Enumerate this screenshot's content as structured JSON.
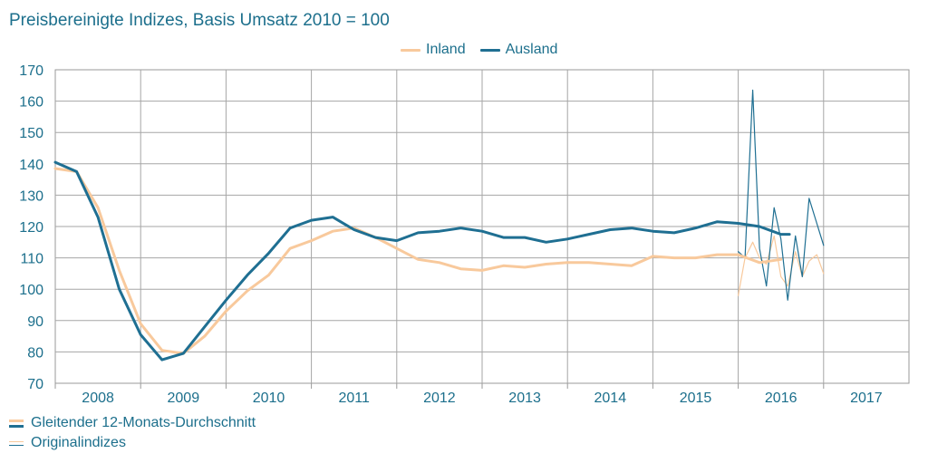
{
  "title": "Preisbereinigte Indizes, Basis Umsatz 2010 = 100",
  "legend_top": [
    {
      "label": "Inland",
      "color": "#f8c99c"
    },
    {
      "label": "Ausland",
      "color": "#1f6f92"
    }
  ],
  "legend_bottom": [
    {
      "label": "Gleitender 12-Monats-Durchschnitt"
    },
    {
      "label": "Originalindizes"
    }
  ],
  "chart_data": {
    "type": "line",
    "title": "Preisbereinigte Indizes, Basis Umsatz 2010 = 100",
    "xlabel": "",
    "ylabel": "",
    "ylim": [
      70,
      170
    ],
    "yticks": [
      70,
      80,
      90,
      100,
      110,
      120,
      130,
      140,
      150,
      160,
      170
    ],
    "xlim": [
      2007.5,
      2017.5
    ],
    "xticks": [
      "2008",
      "2009",
      "2010",
      "2011",
      "2012",
      "2013",
      "2014",
      "2015",
      "2016",
      "2017"
    ],
    "grid": true,
    "colors": {
      "inland": "#f8c99c",
      "ausland": "#1f6f92"
    },
    "series": [
      {
        "name": "Inland",
        "style": "Gleitender 12-Monats-Durchschnitt",
        "x": [
          2007.5,
          2007.75,
          2008.0,
          2008.25,
          2008.5,
          2008.75,
          2009.0,
          2009.25,
          2009.5,
          2009.75,
          2010.0,
          2010.25,
          2010.5,
          2010.75,
          2011.0,
          2011.25,
          2011.5,
          2011.75,
          2012.0,
          2012.25,
          2012.5,
          2012.75,
          2013.0,
          2013.25,
          2013.5,
          2013.75,
          2014.0,
          2014.25,
          2014.5,
          2014.75,
          2015.0,
          2015.25,
          2015.5,
          2015.75,
          2016.0
        ],
        "values": [
          138.5,
          137.5,
          126,
          106,
          89,
          80.5,
          79.5,
          85,
          93,
          99.5,
          104.5,
          113,
          115.5,
          118.5,
          119.5,
          116.5,
          113,
          109.5,
          108.5,
          106.5,
          106,
          107.5,
          107,
          108,
          108.5,
          108.5,
          108,
          107.5,
          110.5,
          110,
          110,
          111,
          111,
          108.5,
          109.5
        ]
      },
      {
        "name": "Ausland",
        "style": "Gleitender 12-Monats-Durchschnitt",
        "x": [
          2007.5,
          2007.75,
          2008.0,
          2008.25,
          2008.5,
          2008.75,
          2009.0,
          2009.25,
          2009.5,
          2009.75,
          2010.0,
          2010.25,
          2010.5,
          2010.75,
          2011.0,
          2011.25,
          2011.5,
          2011.75,
          2012.0,
          2012.25,
          2012.5,
          2012.75,
          2013.0,
          2013.25,
          2013.5,
          2013.75,
          2014.0,
          2014.25,
          2014.5,
          2014.75,
          2015.0,
          2015.25,
          2015.5,
          2015.75,
          2016.0,
          2016.1
        ],
        "values": [
          140.5,
          137.5,
          123,
          100,
          85.5,
          77.5,
          79.5,
          88,
          96.5,
          104.5,
          111.5,
          119.5,
          122,
          123,
          119,
          116.5,
          115.5,
          118,
          118.5,
          119.5,
          118.5,
          116.5,
          116.5,
          115,
          116,
          117.5,
          119,
          119.5,
          118.5,
          118,
          119.5,
          121.5,
          121,
          120,
          117.5,
          117.5
        ]
      },
      {
        "name": "Inland",
        "style": "Originalindizes",
        "x": [
          2015.5,
          2015.58,
          2015.67,
          2015.75,
          2015.83,
          2015.92,
          2016.0,
          2016.08,
          2016.17,
          2016.25,
          2016.33,
          2016.42,
          2016.5
        ],
        "values": [
          98,
          110,
          115,
          110,
          108,
          117,
          104,
          101,
          112,
          104,
          109,
          111,
          105
        ]
      },
      {
        "name": "Ausland",
        "style": "Originalindizes",
        "x": [
          2015.5,
          2015.58,
          2015.67,
          2015.75,
          2015.83,
          2015.92,
          2016.0,
          2016.08,
          2016.17,
          2016.25,
          2016.33,
          2016.42,
          2016.5
        ],
        "values": [
          112,
          110,
          163.5,
          113,
          101,
          126,
          116,
          96.5,
          117,
          104,
          129,
          121,
          114
        ]
      }
    ]
  }
}
